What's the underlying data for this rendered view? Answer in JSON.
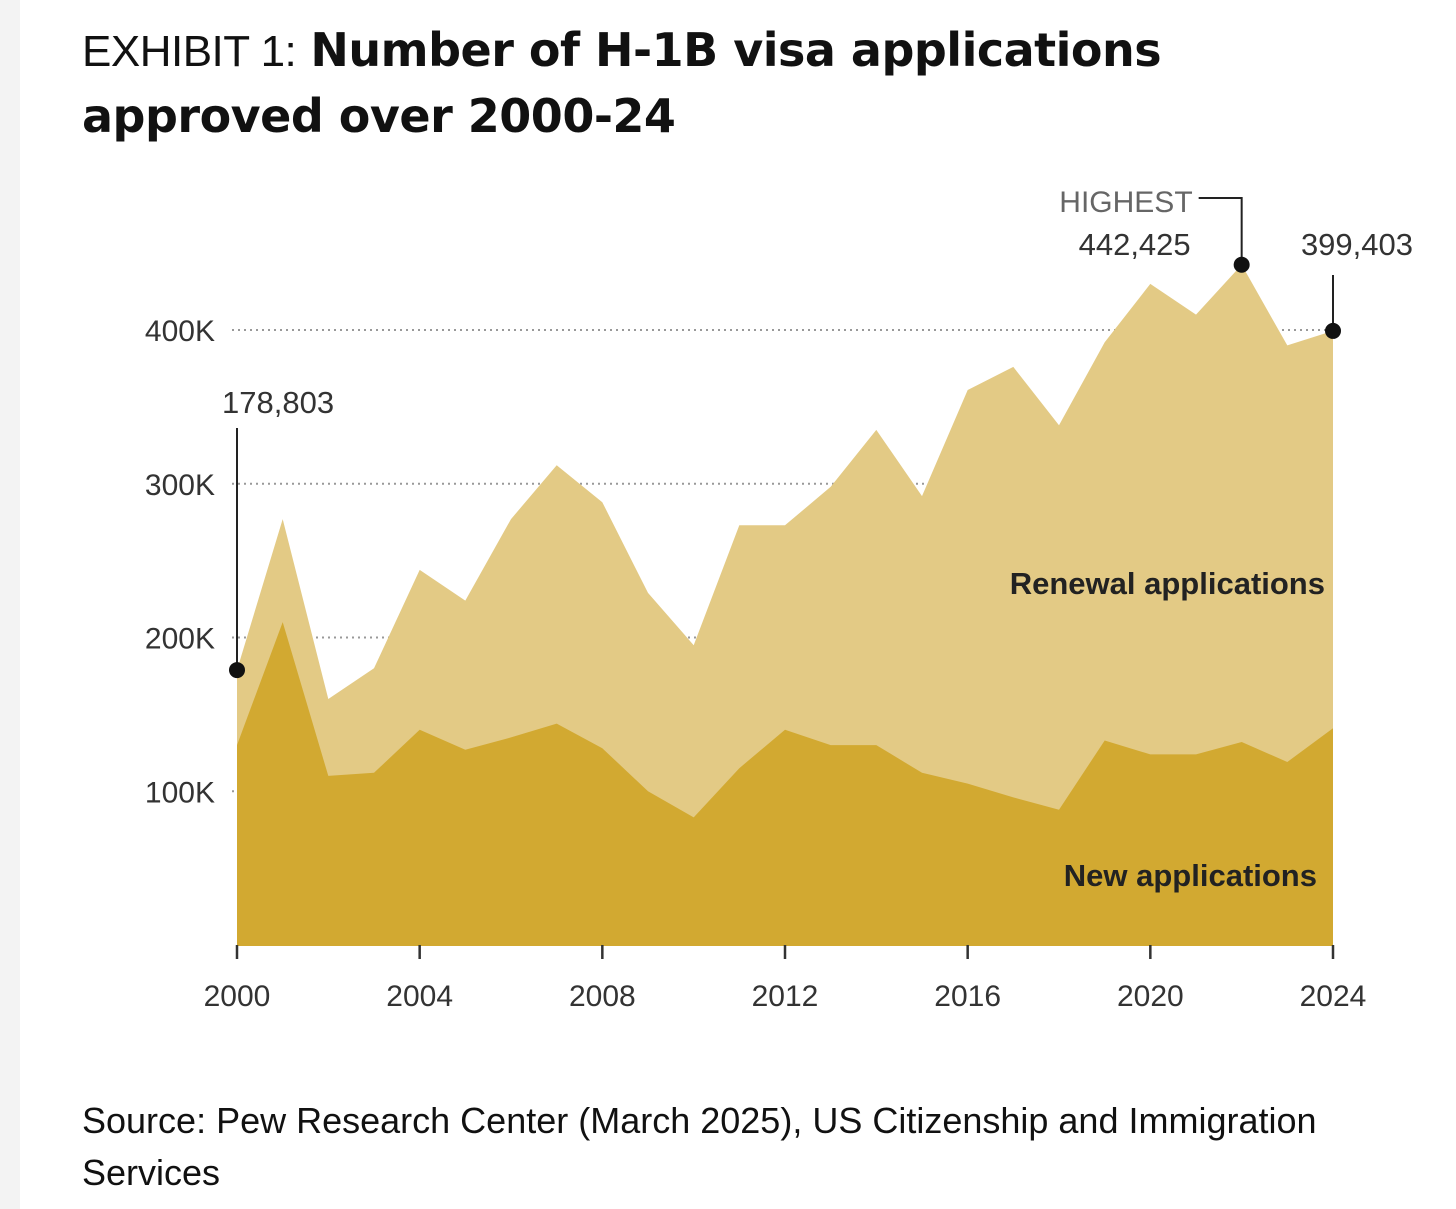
{
  "header": {
    "exhibit": "EXHIBIT 1:",
    "title": "Number of H-1B visa applications approved over 2000-24"
  },
  "footer": {
    "source": "Source: Pew Research Center (March 2025), US Citizenship and Immigration Services"
  },
  "colors": {
    "renewal": "#e3ca85",
    "new": "#d2a931",
    "grid": "#999999",
    "axis": "#333333"
  },
  "chart_data": {
    "type": "area",
    "stacked": true,
    "title": "Number of H-1B visa applications approved over 2000-24",
    "x": [
      2000,
      2001,
      2002,
      2003,
      2004,
      2005,
      2006,
      2007,
      2008,
      2009,
      2010,
      2011,
      2012,
      2013,
      2014,
      2015,
      2016,
      2017,
      2018,
      2019,
      2020,
      2021,
      2022,
      2023,
      2024
    ],
    "series": [
      {
        "name": "New applications",
        "values": [
          130000,
          210000,
          110000,
          112000,
          140000,
          127000,
          135000,
          144000,
          128000,
          100000,
          83000,
          115000,
          140000,
          130000,
          130000,
          112000,
          105000,
          96000,
          88000,
          133000,
          124000,
          124000,
          132000,
          119000,
          141000
        ]
      },
      {
        "name": "Renewal applications",
        "values": [
          48803,
          67000,
          50000,
          68000,
          104000,
          97000,
          142000,
          168000,
          160000,
          129000,
          112000,
          158000,
          133000,
          168000,
          205000,
          180000,
          256000,
          280000,
          250000,
          259000,
          306000,
          286000,
          310425,
          271000,
          258403
        ]
      }
    ],
    "xticks": [
      "2000",
      "2004",
      "2008",
      "2012",
      "2016",
      "2020",
      "2024"
    ],
    "yticks": [
      {
        "value": 100000,
        "label": "100K"
      },
      {
        "value": 200000,
        "label": "200K"
      },
      {
        "value": 300000,
        "label": "300K"
      },
      {
        "value": 400000,
        "label": "400K"
      }
    ],
    "ylim": [
      0,
      442425
    ],
    "xlim": [
      2000,
      2024
    ],
    "gridlines": "dotted",
    "series_labels": {
      "renewal": "Renewal applications",
      "new": "New applications"
    },
    "annotations": [
      {
        "year": 2000,
        "value": 178803,
        "label": "178,803"
      },
      {
        "year": 2022,
        "value": 442425,
        "label": "442,425",
        "tag": "HIGHEST"
      },
      {
        "year": 2024,
        "value": 399403,
        "label": "399,403"
      }
    ]
  }
}
